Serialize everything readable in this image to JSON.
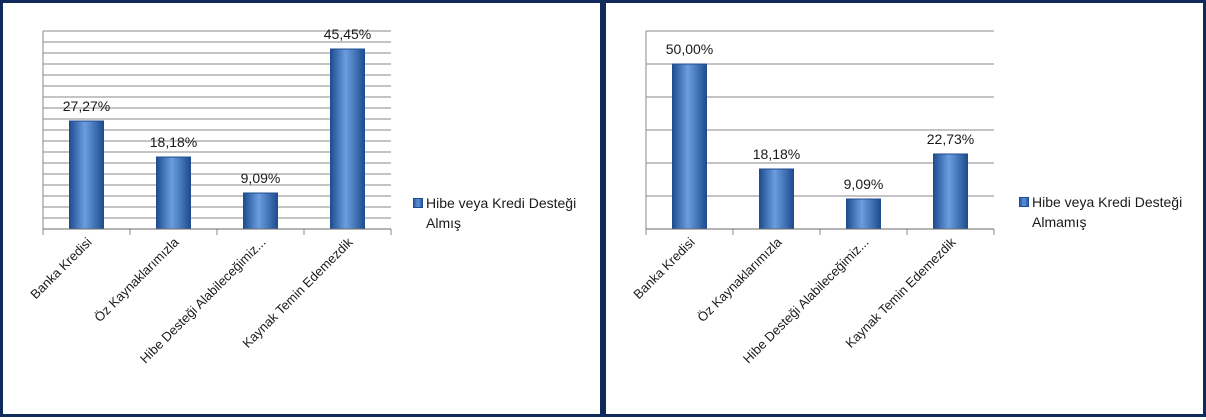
{
  "charts": [
    {
      "id": "left",
      "legend": "Hibe veya Kredi Desteği Almış",
      "colors": {
        "bar": "#3c72bd",
        "bar_dark": "#1f4d8f",
        "grid": "#8a8a8a"
      }
    },
    {
      "id": "right",
      "legend": "Hibe veya Kredi Desteği Almamış",
      "colors": {
        "bar": "#3c72bd",
        "bar_dark": "#1f4d8f",
        "grid": "#8a8a8a"
      }
    }
  ],
  "chart_data": [
    {
      "type": "bar",
      "categories": [
        "Banka Kredisi",
        "Öz Kaynaklarımızla",
        "Hibe Desteği Alabileceğimiz...",
        "Kaynak Temin Edemezdik"
      ],
      "series": [
        {
          "name": "Hibe veya Kredi Desteği Almış",
          "values": [
            27.27,
            18.18,
            9.09,
            45.45
          ]
        }
      ],
      "data_labels": [
        "27,27%",
        "18,18%",
        "9,09%",
        "45,45%"
      ],
      "ylim": [
        0,
        50
      ],
      "grid": true,
      "legend_position": "right"
    },
    {
      "type": "bar",
      "categories": [
        "Banka Kredisi",
        "Öz Kaynaklarımızla",
        "Hibe Desteği Alabileceğimiz...",
        "Kaynak Temin Edemezdik"
      ],
      "series": [
        {
          "name": "Hibe veya Kredi Desteği Almamış",
          "values": [
            50.0,
            18.18,
            9.09,
            22.73
          ]
        }
      ],
      "data_labels": [
        "50,00%",
        "18,18%",
        "9,09%",
        "22,73%"
      ],
      "ylim": [
        0,
        60
      ],
      "grid": true,
      "legend_position": "right"
    }
  ]
}
